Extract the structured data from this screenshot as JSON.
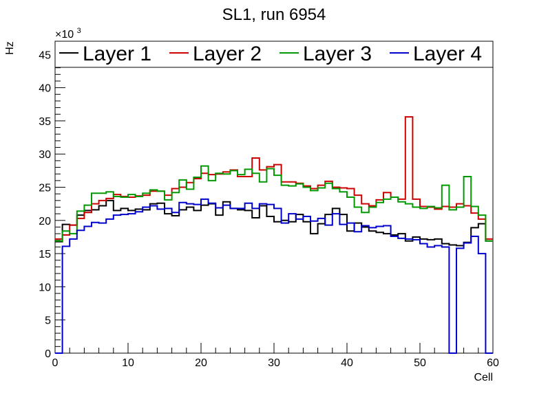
{
  "chart_data": {
    "type": "line",
    "title": "SL1, run 6954",
    "xlabel": "Cell",
    "ylabel": "Hz",
    "y_multiplier": "×10",
    "y_multiplier_exp": "3",
    "xlim": [
      0,
      60
    ],
    "ylim": [
      0,
      47
    ],
    "x_ticks": [
      0,
      10,
      20,
      30,
      40,
      50,
      60
    ],
    "y_ticks": [
      0,
      5,
      10,
      15,
      20,
      25,
      30,
      35,
      40,
      45
    ],
    "bins": {
      "start": 0,
      "width": 1,
      "count": 60
    },
    "legend_position": "top",
    "series": [
      {
        "name": "Layer 1",
        "color": "#000000",
        "values": [
          16.8,
          19.4,
          19.3,
          20.8,
          21.5,
          21.6,
          22.2,
          23.0,
          21.5,
          21.8,
          21.5,
          21.7,
          21.6,
          22.5,
          22.6,
          21.0,
          20.7,
          21.6,
          22.0,
          21.5,
          22.3,
          22.5,
          20.8,
          22.8,
          21.8,
          21.6,
          21.5,
          20.4,
          22.2,
          20.6,
          19.8,
          20.0,
          19.8,
          20.9,
          19.8,
          18.0,
          19.5,
          20.9,
          21.8,
          20.9,
          18.4,
          19.6,
          19.0,
          18.4,
          18.2,
          18.0,
          17.8,
          18.0,
          16.9,
          17.5,
          17.2,
          17.1,
          17.2,
          16.5,
          16.3,
          16.2,
          16.7,
          18.9,
          19.5,
          16.9
        ]
      },
      {
        "name": "Layer 2",
        "color": "#cc0000",
        "values": [
          17.2,
          17.8,
          19.3,
          20.3,
          21.2,
          22.5,
          23.0,
          23.3,
          23.9,
          23.6,
          23.5,
          23.7,
          23.8,
          24.4,
          24.4,
          23.8,
          24.8,
          25.0,
          25.7,
          26.3,
          27.1,
          26.9,
          27.0,
          27.3,
          27.6,
          26.6,
          26.6,
          29.4,
          27.6,
          28.1,
          28.4,
          25.8,
          25.8,
          25.6,
          25.2,
          24.8,
          25.3,
          25.9,
          25.0,
          24.9,
          24.8,
          23.8,
          22.5,
          22.2,
          23.1,
          24.2,
          23.5,
          23.2,
          35.6,
          23.2,
          22.1,
          22.0,
          21.7,
          22.1,
          22.0,
          22.5,
          22.2,
          21.1,
          20.2,
          17.2
        ]
      },
      {
        "name": "Layer 3",
        "color": "#009900",
        "values": [
          16.9,
          18.4,
          18.0,
          21.4,
          22.3,
          24.1,
          24.1,
          24.3,
          23.6,
          23.5,
          23.9,
          23.6,
          24.1,
          24.6,
          24.4,
          23.1,
          24.2,
          26.1,
          24.7,
          26.5,
          28.2,
          26.0,
          27.1,
          27.0,
          27.5,
          26.9,
          27.7,
          27.1,
          25.8,
          27.8,
          26.8,
          25.3,
          25.2,
          25.5,
          25.0,
          24.5,
          24.9,
          25.6,
          24.8,
          24.3,
          23.5,
          22.0,
          21.2,
          22.0,
          22.7,
          23.2,
          23.5,
          22.8,
          22.5,
          22.0,
          21.8,
          22.1,
          21.9,
          25.3,
          21.6,
          22.0,
          26.6,
          22.1,
          20.8,
          16.9
        ]
      },
      {
        "name": "Layer 4",
        "color": "#0000cc",
        "values": [
          0,
          16.1,
          17.2,
          18.5,
          19.1,
          19.7,
          19.6,
          20.2,
          20.8,
          20.9,
          21.0,
          21.3,
          22.0,
          22.2,
          21.7,
          21.8,
          21.2,
          22.7,
          22.5,
          22.4,
          23.2,
          22.6,
          21.9,
          22.3,
          21.8,
          21.8,
          22.6,
          21.8,
          22.5,
          22.4,
          21.8,
          19.6,
          21.0,
          20.2,
          20.6,
          19.9,
          20.3,
          19.3,
          21.0,
          19.4,
          19.6,
          18.3,
          19.2,
          18.9,
          19.1,
          19.2,
          17.6,
          17.3,
          17.2,
          17.1,
          16.5,
          16.0,
          16.2,
          16.0,
          0,
          15.8,
          16.6,
          17.6,
          15.0,
          0
        ]
      }
    ]
  }
}
